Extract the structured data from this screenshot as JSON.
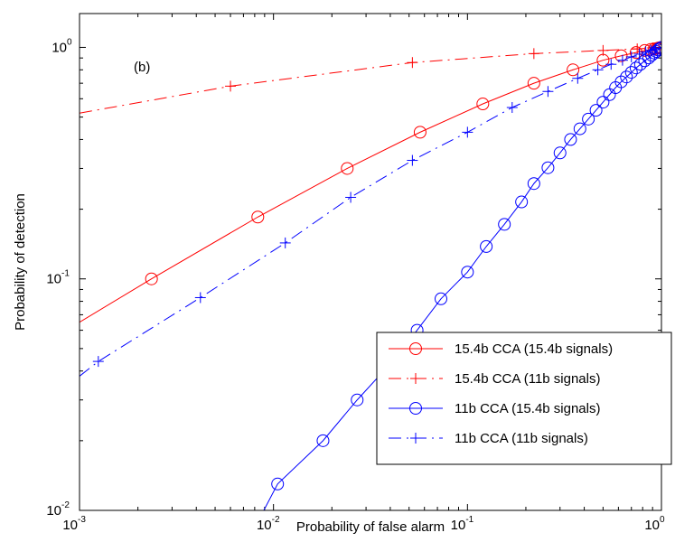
{
  "chart_data": {
    "type": "line",
    "annotation": "(b)",
    "xlabel": "Probability of false alarm",
    "ylabel": "Probability of detection",
    "x_scale": "log",
    "y_scale": "log",
    "xlim": [
      0.001,
      1
    ],
    "ylim": [
      0.01,
      1.4
    ],
    "x_ticks": [
      {
        "value": 0.001,
        "base": "10",
        "exp": "-3"
      },
      {
        "value": 0.01,
        "base": "10",
        "exp": "-2"
      },
      {
        "value": 0.1,
        "base": "10",
        "exp": "-1"
      },
      {
        "value": 1,
        "base": "10",
        "exp": "0"
      }
    ],
    "y_ticks": [
      {
        "value": 0.01,
        "base": "10",
        "exp": "-2"
      },
      {
        "value": 0.1,
        "base": "10",
        "exp": "-1"
      },
      {
        "value": 1,
        "base": "10",
        "exp": "0"
      }
    ],
    "grid": false,
    "legend_position": "bottom-right",
    "series": [
      {
        "name": "15.4b CCA (15.4b signals)",
        "color": "#ff0000",
        "dash": "solid",
        "marker": "circle",
        "x": [
          0.001,
          0.00235,
          0.0083,
          0.024,
          0.057,
          0.12,
          0.22,
          0.35,
          0.5,
          0.62,
          0.74,
          0.82,
          0.88,
          0.92,
          0.95,
          0.97,
          0.99,
          1.0
        ],
        "y": [
          0.065,
          0.1,
          0.185,
          0.3,
          0.43,
          0.57,
          0.7,
          0.8,
          0.88,
          0.92,
          0.95,
          0.97,
          0.98,
          0.985,
          0.99,
          0.995,
          0.998,
          1.0
        ],
        "marker_x": [
          0.00235,
          0.0083,
          0.024,
          0.057,
          0.12,
          0.22,
          0.35,
          0.5,
          0.62,
          0.74,
          0.82,
          0.88,
          0.92,
          0.95,
          0.97,
          0.99
        ]
      },
      {
        "name": "15.4b CCA (11b signals)",
        "color": "#ff0000",
        "dash": "dashdot",
        "marker": "plus",
        "x": [
          0.001,
          0.006,
          0.052,
          0.22,
          0.5,
          0.75,
          0.9,
          1.0
        ],
        "y": [
          0.52,
          0.68,
          0.86,
          0.94,
          0.97,
          0.985,
          0.995,
          1.0
        ],
        "marker_x": [
          0.006,
          0.052,
          0.22,
          0.5,
          0.75,
          0.9
        ]
      },
      {
        "name": "11b CCA (15.4b signals)",
        "color": "#0000ff",
        "dash": "solid",
        "marker": "circle",
        "x": [
          0.0088,
          0.0105,
          0.018,
          0.027,
          0.04,
          0.055,
          0.073,
          0.1,
          0.125,
          0.155,
          0.19,
          0.22,
          0.26,
          0.3,
          0.34,
          0.38,
          0.42,
          0.46,
          0.5,
          0.54,
          0.58,
          0.62,
          0.66,
          0.7,
          0.74,
          0.78,
          0.82,
          0.86,
          0.89,
          0.92,
          0.94,
          0.96,
          0.98,
          1.0
        ],
        "y": [
          0.0098,
          0.013,
          0.02,
          0.03,
          0.043,
          0.06,
          0.082,
          0.107,
          0.138,
          0.172,
          0.215,
          0.258,
          0.302,
          0.35,
          0.4,
          0.445,
          0.49,
          0.535,
          0.58,
          0.625,
          0.67,
          0.71,
          0.745,
          0.78,
          0.815,
          0.845,
          0.875,
          0.9,
          0.925,
          0.945,
          0.96,
          0.975,
          0.99,
          1.0
        ],
        "marker_x": [
          0.0105,
          0.018,
          0.027,
          0.04,
          0.055,
          0.073,
          0.1,
          0.125,
          0.155,
          0.19,
          0.22,
          0.26,
          0.3,
          0.34,
          0.38,
          0.42,
          0.46,
          0.5,
          0.54,
          0.58,
          0.62,
          0.66,
          0.7,
          0.74,
          0.78,
          0.82,
          0.86,
          0.89,
          0.92,
          0.94,
          0.96,
          0.98,
          1.0
        ]
      },
      {
        "name": "11b CCA (11b signals)",
        "color": "#0000ff",
        "dash": "dashdot",
        "marker": "plus",
        "x": [
          0.001,
          0.00125,
          0.0042,
          0.0115,
          0.025,
          0.052,
          0.1,
          0.17,
          0.26,
          0.37,
          0.47,
          0.55,
          0.63,
          0.7,
          0.77,
          0.83,
          0.88,
          0.93,
          1.0
        ],
        "y": [
          0.038,
          0.044,
          0.083,
          0.143,
          0.225,
          0.325,
          0.43,
          0.55,
          0.645,
          0.735,
          0.8,
          0.845,
          0.88,
          0.91,
          0.935,
          0.955,
          0.97,
          0.985,
          1.0
        ],
        "marker_x": [
          0.00125,
          0.0042,
          0.0115,
          0.025,
          0.052,
          0.1,
          0.17,
          0.26,
          0.37,
          0.47,
          0.55,
          0.63,
          0.7,
          0.77,
          0.83,
          0.88,
          0.93
        ]
      }
    ]
  }
}
